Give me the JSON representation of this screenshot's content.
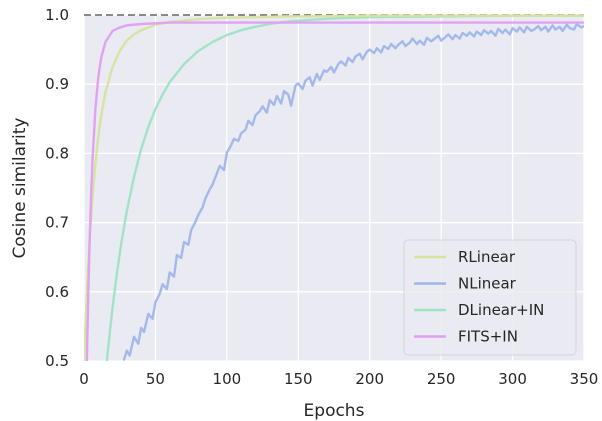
{
  "chart_data": {
    "type": "line",
    "title": "",
    "xlabel": "Epochs",
    "ylabel": "Cosine similarity",
    "xlim": [
      0,
      350
    ],
    "ylim": [
      0.5,
      1.0
    ],
    "xticks": [
      "0",
      "50",
      "100",
      "150",
      "200",
      "250",
      "300",
      "350"
    ],
    "yticks": [
      "0.5",
      "0.6",
      "0.7",
      "0.8",
      "0.9",
      "1.0"
    ],
    "grid": true,
    "legend_position": "lower-right",
    "reference_line": {
      "y": 1.0,
      "style": "dashed",
      "color": "#666666"
    },
    "series": [
      {
        "name": "RLinear",
        "color": "#d6e39a",
        "x": [
          0,
          2,
          4,
          6,
          8,
          10,
          12,
          15,
          20,
          25,
          30,
          35,
          40,
          50,
          60,
          70,
          80,
          90,
          100,
          120,
          140,
          160,
          200,
          250,
          300,
          350
        ],
        "y": [
          0.5,
          0.598,
          0.677,
          0.738,
          0.786,
          0.824,
          0.854,
          0.888,
          0.925,
          0.948,
          0.963,
          0.972,
          0.978,
          0.986,
          0.99,
          0.992,
          0.994,
          0.995,
          0.996,
          0.997,
          0.998,
          0.998,
          0.999,
          0.999,
          0.999,
          0.999
        ]
      },
      {
        "name": "NLinear",
        "color": "#9fb6ea",
        "x": [
          28,
          30,
          32,
          35,
          38,
          40,
          42,
          45,
          48,
          50,
          53,
          55,
          58,
          60,
          63,
          65,
          68,
          70,
          73,
          75,
          78,
          80,
          83,
          85,
          88,
          90,
          93,
          95,
          98,
          100,
          103,
          105,
          108,
          110,
          113,
          115,
          118,
          120,
          123,
          125,
          128,
          130,
          133,
          135,
          138,
          140,
          143,
          145,
          148,
          150,
          153,
          155,
          158,
          160,
          163,
          165,
          168,
          170,
          173,
          175,
          178,
          180,
          183,
          185,
          188,
          190,
          193,
          195,
          198,
          200,
          203,
          205,
          208,
          210,
          213,
          215,
          218,
          220,
          223,
          225,
          228,
          230,
          233,
          235,
          238,
          240,
          243,
          245,
          248,
          250,
          253,
          255,
          258,
          260,
          263,
          265,
          268,
          270,
          273,
          275,
          278,
          280,
          283,
          285,
          288,
          290,
          293,
          295,
          298,
          300,
          303,
          305,
          308,
          310,
          313,
          315,
          318,
          320,
          323,
          325,
          328,
          330,
          333,
          335,
          338,
          340,
          343,
          345,
          348,
          350
        ],
        "y": [
          0.502,
          0.515,
          0.508,
          0.535,
          0.525,
          0.548,
          0.542,
          0.568,
          0.561,
          0.585,
          0.597,
          0.611,
          0.604,
          0.628,
          0.622,
          0.653,
          0.649,
          0.672,
          0.668,
          0.689,
          0.701,
          0.711,
          0.722,
          0.735,
          0.748,
          0.755,
          0.771,
          0.782,
          0.776,
          0.801,
          0.812,
          0.821,
          0.818,
          0.829,
          0.834,
          0.847,
          0.841,
          0.855,
          0.861,
          0.868,
          0.859,
          0.877,
          0.87,
          0.883,
          0.872,
          0.89,
          0.885,
          0.869,
          0.898,
          0.901,
          0.893,
          0.905,
          0.91,
          0.898,
          0.915,
          0.906,
          0.92,
          0.918,
          0.925,
          0.917,
          0.929,
          0.933,
          0.927,
          0.938,
          0.932,
          0.94,
          0.944,
          0.936,
          0.947,
          0.95,
          0.945,
          0.952,
          0.946,
          0.955,
          0.951,
          0.958,
          0.952,
          0.957,
          0.962,
          0.955,
          0.96,
          0.966,
          0.958,
          0.963,
          0.957,
          0.967,
          0.962,
          0.965,
          0.97,
          0.963,
          0.968,
          0.972,
          0.965,
          0.971,
          0.966,
          0.974,
          0.97,
          0.975,
          0.969,
          0.976,
          0.971,
          0.978,
          0.973,
          0.977,
          0.97,
          0.98,
          0.974,
          0.979,
          0.972,
          0.981,
          0.976,
          0.982,
          0.975,
          0.983,
          0.977,
          0.979,
          0.984,
          0.978,
          0.983,
          0.976,
          0.985,
          0.979,
          0.983,
          0.977,
          0.986,
          0.981,
          0.979,
          0.987,
          0.982,
          0.984
        ]
      },
      {
        "name": "DLinear+IN",
        "color": "#9ee3c4",
        "x": [
          16,
          18,
          20,
          23,
          26,
          30,
          35,
          40,
          45,
          50,
          55,
          60,
          70,
          80,
          90,
          100,
          110,
          120,
          130,
          140,
          150,
          175,
          200,
          250,
          300,
          350
        ],
        "y": [
          0.5,
          0.54,
          0.577,
          0.626,
          0.669,
          0.717,
          0.766,
          0.806,
          0.838,
          0.864,
          0.885,
          0.903,
          0.929,
          0.948,
          0.961,
          0.971,
          0.978,
          0.983,
          0.987,
          0.99,
          0.992,
          0.995,
          0.997,
          0.998,
          0.999,
          0.999
        ]
      },
      {
        "name": "FITS+IN",
        "color": "#e29ef2",
        "x": [
          2,
          3,
          4,
          5,
          6,
          8,
          10,
          12,
          15,
          20,
          25,
          30,
          40,
          50,
          60,
          70,
          80,
          100,
          150,
          200,
          250,
          300,
          350
        ],
        "y": [
          0.5,
          0.597,
          0.677,
          0.741,
          0.792,
          0.865,
          0.91,
          0.938,
          0.961,
          0.977,
          0.982,
          0.985,
          0.987,
          0.988,
          0.989,
          0.989,
          0.989,
          0.989,
          0.989,
          0.989,
          0.989,
          0.989,
          0.989
        ]
      }
    ]
  }
}
